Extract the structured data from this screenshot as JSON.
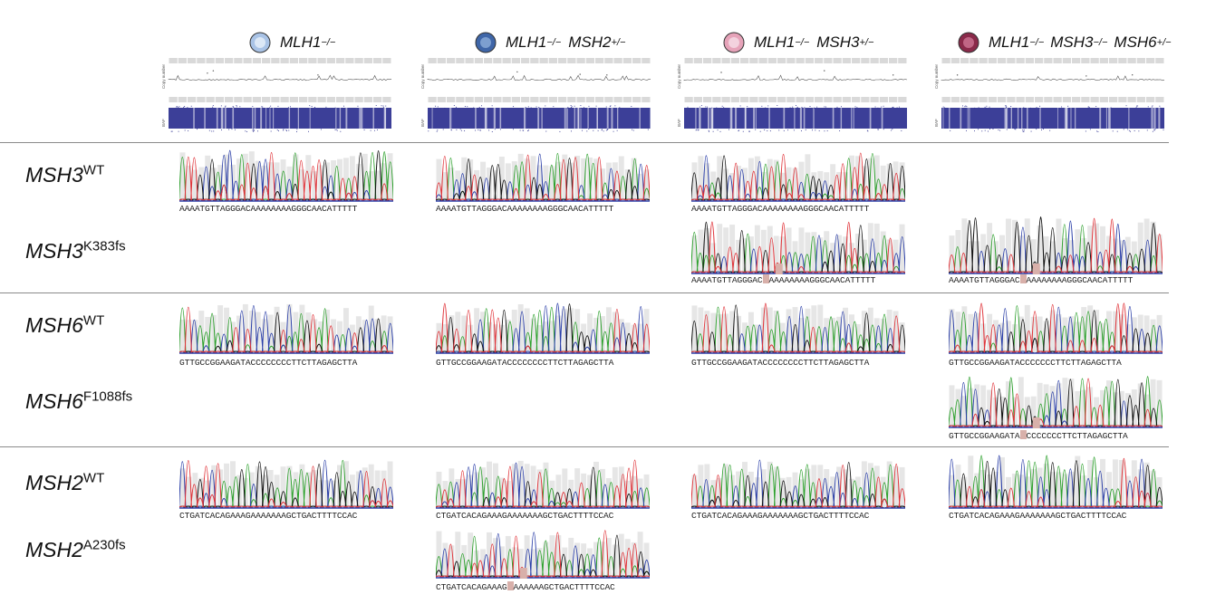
{
  "columns": [
    {
      "id": "c1",
      "gene1": "MLH1",
      "sup1": "−/−",
      "gene2": "",
      "sup2": "",
      "gene3": "",
      "sup3": "",
      "cell_color": "#a9c3e6",
      "cell_inner": "#dce8f6"
    },
    {
      "id": "c2",
      "gene1": "MLH1",
      "sup1": "−/−",
      "gene2": "MSH2",
      "sup2": "+/−",
      "gene3": "",
      "sup3": "",
      "cell_color": "#3f66a8",
      "cell_inner": "#7d9fd0"
    },
    {
      "id": "c3",
      "gene1": "MLH1",
      "sup1": "−/−",
      "gene2": "MSH3",
      "sup2": "+/−",
      "gene3": "",
      "sup3": "",
      "cell_color": "#e6a3b9",
      "cell_inner": "#f3d2de"
    },
    {
      "id": "c4",
      "gene1": "MLH1",
      "sup1": "−/−",
      "gene2": "MSH3",
      "sup2": "−/−",
      "gene3": "MSH6",
      "sup3": "+/−",
      "cell_color": "#8a2a4a",
      "cell_inner": "#c06685"
    }
  ],
  "panel_labels": {
    "copy_number": "Copy number",
    "baf": "BAF"
  },
  "rows": [
    {
      "gene": "MSH3",
      "variant": "WT"
    },
    {
      "gene": "MSH3",
      "variant": "K383fs"
    },
    {
      "gene": "MSH6",
      "variant": "WT"
    },
    {
      "gene": "MSH6",
      "variant": "F1088fs"
    },
    {
      "gene": "MSH2",
      "variant": "WT"
    },
    {
      "gene": "MSH2",
      "variant": "A230fs"
    }
  ],
  "sequences": {
    "msh3_wt": "AAAATGTTAGGGACAAAAAAAAGGGCAACATTTTT",
    "msh3_wt_c3": "AAAATGTTAGGGACAAAAAAAAGGGCAACATTTTT",
    "msh3_fs_left": "AAAATGTTAGGGAC",
    "msh3_fs_right": "AAAAAAAAGGGCAACATTTTT",
    "msh3_fs_right_c4": "AAAAAAAAGGGCAACATTTTT",
    "msh6_wt": "GTTGCCGGAAGATACCCCCCCCTTCTTAGAGCTTA",
    "msh6_wt_c4": "GTTGCCGGAAGATACCCCCCCTTCTTAGAGCTTA",
    "msh6_fs_left": "GTTGCCGGAAGATA",
    "msh6_fs_right": "CCCCCCCTTCTTAGAGCTTA",
    "msh2_wt": "CTGATCACAGAAAGAAAAAAAGCTGACTTTTCCAC",
    "msh2_fs_left": "CTGATCACAGAAAG",
    "msh2_fs_right": "AAAAAAGCTGACTTTTCCAC"
  },
  "colors": {
    "A": "#2ca02c",
    "C": "#2b3fa8",
    "G": "#111111",
    "T": "#e0343a",
    "deletion": "#d8b0aa",
    "baf_points": "#2b2f8f"
  }
}
